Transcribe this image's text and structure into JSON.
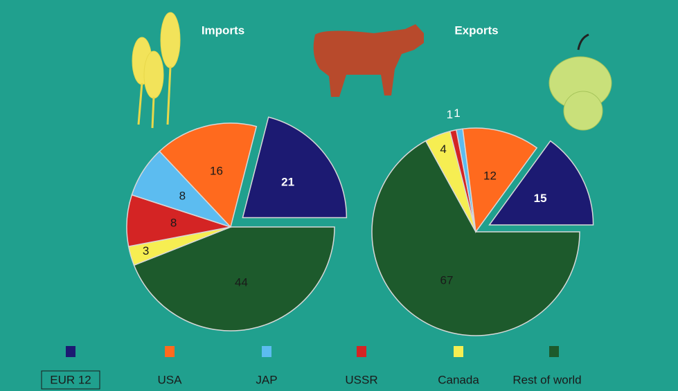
{
  "chart_data": [
    {
      "type": "pie",
      "title": "Imports",
      "categories": [
        "EUR 12",
        "USA",
        "JAP",
        "USSR",
        "Canada",
        "Rest of world"
      ],
      "values": [
        21,
        16,
        8,
        8,
        3,
        44
      ],
      "colors": [
        "#1c1a72",
        "#ff6a1e",
        "#5cbcf0",
        "#d42424",
        "#f6ee52",
        "#1d5a2c"
      ]
    },
    {
      "type": "pie",
      "title": "Exports",
      "categories": [
        "EUR 12",
        "USA",
        "JAP",
        "USSR",
        "Canada",
        "Rest of world"
      ],
      "values": [
        15,
        12,
        1,
        1,
        4,
        67
      ],
      "colors": [
        "#1c1a72",
        "#ff6a1e",
        "#5cbcf0",
        "#d42424",
        "#f6ee52",
        "#1d5a2c"
      ]
    }
  ]
}
